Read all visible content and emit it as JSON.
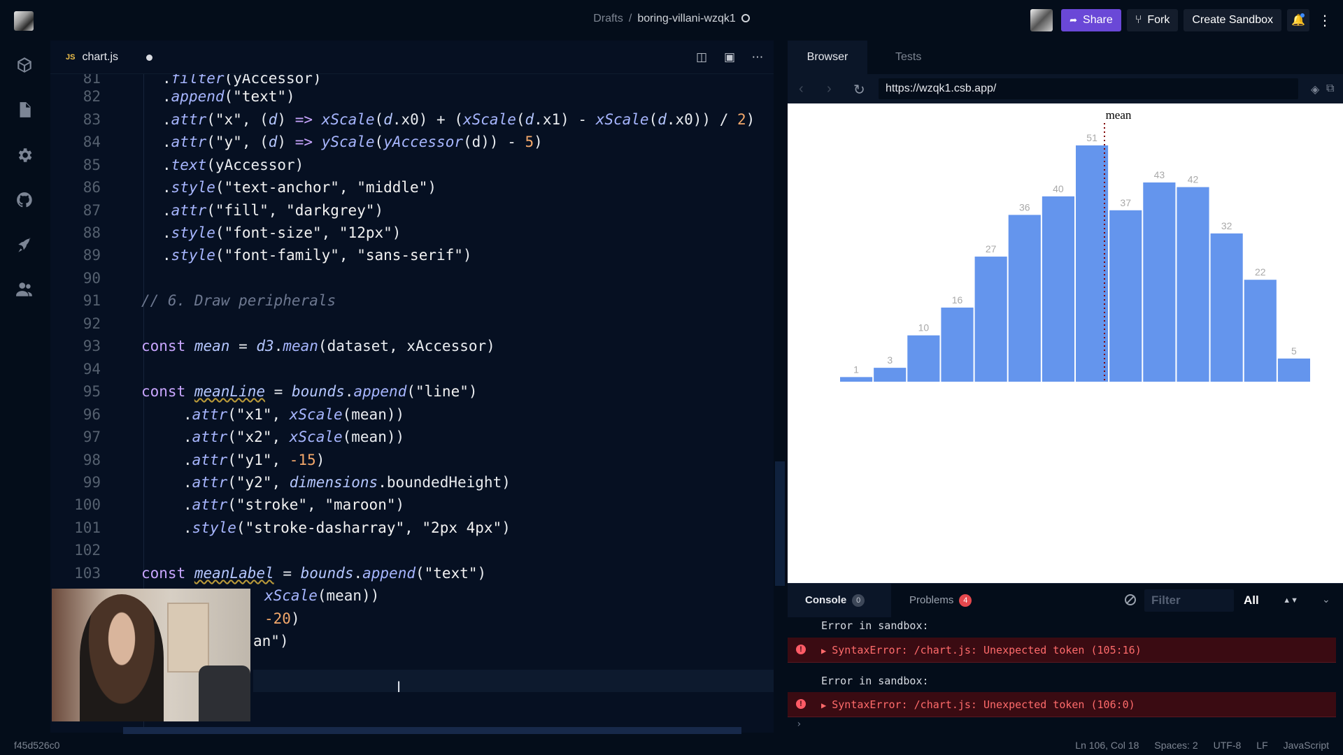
{
  "header": {
    "breadcrumb_drafts": "Drafts",
    "breadcrumb_sep": "/",
    "sandbox_name": "boring-villani-wzqk1",
    "share_label": "Share",
    "fork_label": "Fork",
    "create_label": "Create Sandbox"
  },
  "editor": {
    "tab_label": "chart.js",
    "tab_lang": "JS",
    "lines": [
      {
        "n": "81",
        "code": ".filter(yAccessor)"
      },
      {
        "n": "82",
        "code": ".append(\"text\")"
      },
      {
        "n": "83",
        "code": ".attr(\"x\", (d) => xScale(d.x0) + (xScale(d.x1) - xScale(d.x0)) / 2)"
      },
      {
        "n": "84",
        "code": ".attr(\"y\", (d) => yScale(yAccessor(d)) - 5)"
      },
      {
        "n": "85",
        "code": ".text(yAccessor)"
      },
      {
        "n": "86",
        "code": ".style(\"text-anchor\", \"middle\")"
      },
      {
        "n": "87",
        "code": ".attr(\"fill\", \"darkgrey\")"
      },
      {
        "n": "88",
        "code": ".style(\"font-size\", \"12px\")"
      },
      {
        "n": "89",
        "code": ".style(\"font-family\", \"sans-serif\")"
      },
      {
        "n": "90",
        "code": ""
      },
      {
        "n": "91",
        "code": "// 6. Draw peripherals"
      },
      {
        "n": "92",
        "code": ""
      },
      {
        "n": "93",
        "code": "const mean = d3.mean(dataset, xAccessor)"
      },
      {
        "n": "94",
        "code": ""
      },
      {
        "n": "95",
        "code": "const meanLine = bounds.append(\"line\")"
      },
      {
        "n": "96",
        "code": ".attr(\"x1\", xScale(mean))"
      },
      {
        "n": "97",
        "code": ".attr(\"x2\", xScale(mean))"
      },
      {
        "n": "98",
        "code": ".attr(\"y1\", -15)"
      },
      {
        "n": "99",
        "code": ".attr(\"y2\", dimensions.boundedHeight)"
      },
      {
        "n": "100",
        "code": ".attr(\"stroke\", \"maroon\")"
      },
      {
        "n": "101",
        "code": ".style(\"stroke-dasharray\", \"2px 4px\")"
      },
      {
        "n": "102",
        "code": ""
      },
      {
        "n": "103",
        "code": "const meanLabel = bounds.append(\"text\")"
      },
      {
        "n": "",
        "code": "xScale(mean))"
      },
      {
        "n": "",
        "code": "-20)"
      },
      {
        "n": "",
        "code": "an\")"
      }
    ]
  },
  "browser": {
    "tab_browser": "Browser",
    "tab_tests": "Tests",
    "url": "https://wzqk1.csb.app/"
  },
  "chart_data": {
    "type": "bar",
    "values": [
      1,
      3,
      10,
      16,
      27,
      36,
      40,
      51,
      37,
      43,
      42,
      32,
      22,
      5
    ],
    "annotation": "mean",
    "bar_color": "#6495ed",
    "label_color": "darkgrey"
  },
  "console": {
    "console_label": "Console",
    "console_count": "0",
    "problems_label": "Problems",
    "problems_count": "4",
    "filter_placeholder": "Filter",
    "level_value": "All",
    "messages": [
      {
        "msg": "Error in sandbox:",
        "error": "SyntaxError: /chart.js: Unexpected token (105:16)"
      },
      {
        "msg": "Error in sandbox:",
        "error": "SyntaxError: /chart.js: Unexpected token (106:0)"
      }
    ]
  },
  "status": {
    "commit": "f45d526c0",
    "position": "Ln 106, Col 18",
    "spaces": "Spaces: 2",
    "encoding": "UTF-8",
    "eol": "LF",
    "language": "JavaScript"
  }
}
